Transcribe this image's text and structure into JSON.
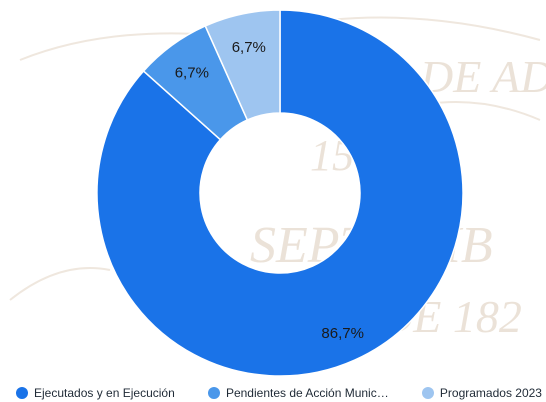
{
  "chart_data": {
    "type": "pie",
    "style": "donut",
    "categories": [
      "Ejecutados y en Ejecución",
      "Pendientes de Acción Munic…",
      "Programados 2023"
    ],
    "values": [
      86.7,
      6.7,
      6.7
    ],
    "data_labels": [
      "86,7%",
      "6,7%",
      "6,7%"
    ],
    "colors": [
      "#1a73e8",
      "#4a97ea",
      "#9ec5f0"
    ],
    "legend_position": "bottom",
    "title": ""
  },
  "legend": {
    "items": [
      {
        "label": "Ejecutados y en Ejecución",
        "color": "#1a73e8"
      },
      {
        "label": "Pendientes de Acción Munic…",
        "color": "#4a97ea"
      },
      {
        "label": "Programados 2023",
        "color": "#9ec5f0"
      }
    ]
  },
  "background": {
    "watermark_text": [
      "DE AD",
      "15",
      "SEPTIEMB",
      "DE 182"
    ]
  }
}
